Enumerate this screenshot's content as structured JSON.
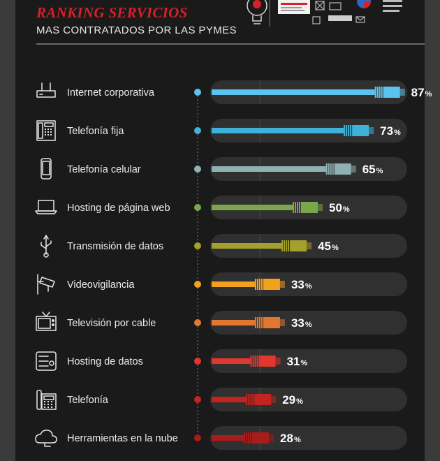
{
  "header": {
    "title": "RANKING SERVICIOS",
    "subtitle": "MAS CONTRATADOS POR LAS PYMES"
  },
  "chart_data": {
    "type": "bar",
    "orientation": "horizontal",
    "title": "RANKING SERVICIOS",
    "subtitle": "MAS CONTRATADOS POR LAS PYMES",
    "unit": "%",
    "xlim": [
      0,
      100
    ],
    "categories": [
      "Internet corporativa",
      "Telefonía fija",
      "Telefonía celular",
      "Hosting de página web",
      "Transmisión de datos",
      "Videovigilancia",
      "Televisión por cable",
      "Hosting de datos",
      "Telefonía",
      "Herramientas en la nube"
    ],
    "values": [
      87,
      73,
      65,
      50,
      45,
      33,
      33,
      31,
      29,
      28
    ],
    "colors": [
      "#5bc4ee",
      "#3eb2d9",
      "#8fb1b1",
      "#7aa74a",
      "#a3a02b",
      "#f0a21c",
      "#e3772f",
      "#e0372e",
      "#c4241f",
      "#a81c1a"
    ],
    "icons": [
      "router-icon",
      "desk-phone-icon",
      "mobile-phone-icon",
      "laptop-icon",
      "usb-icon",
      "security-camera-icon",
      "television-icon",
      "server-icon",
      "office-phone-icon",
      "cloud-icon"
    ]
  }
}
